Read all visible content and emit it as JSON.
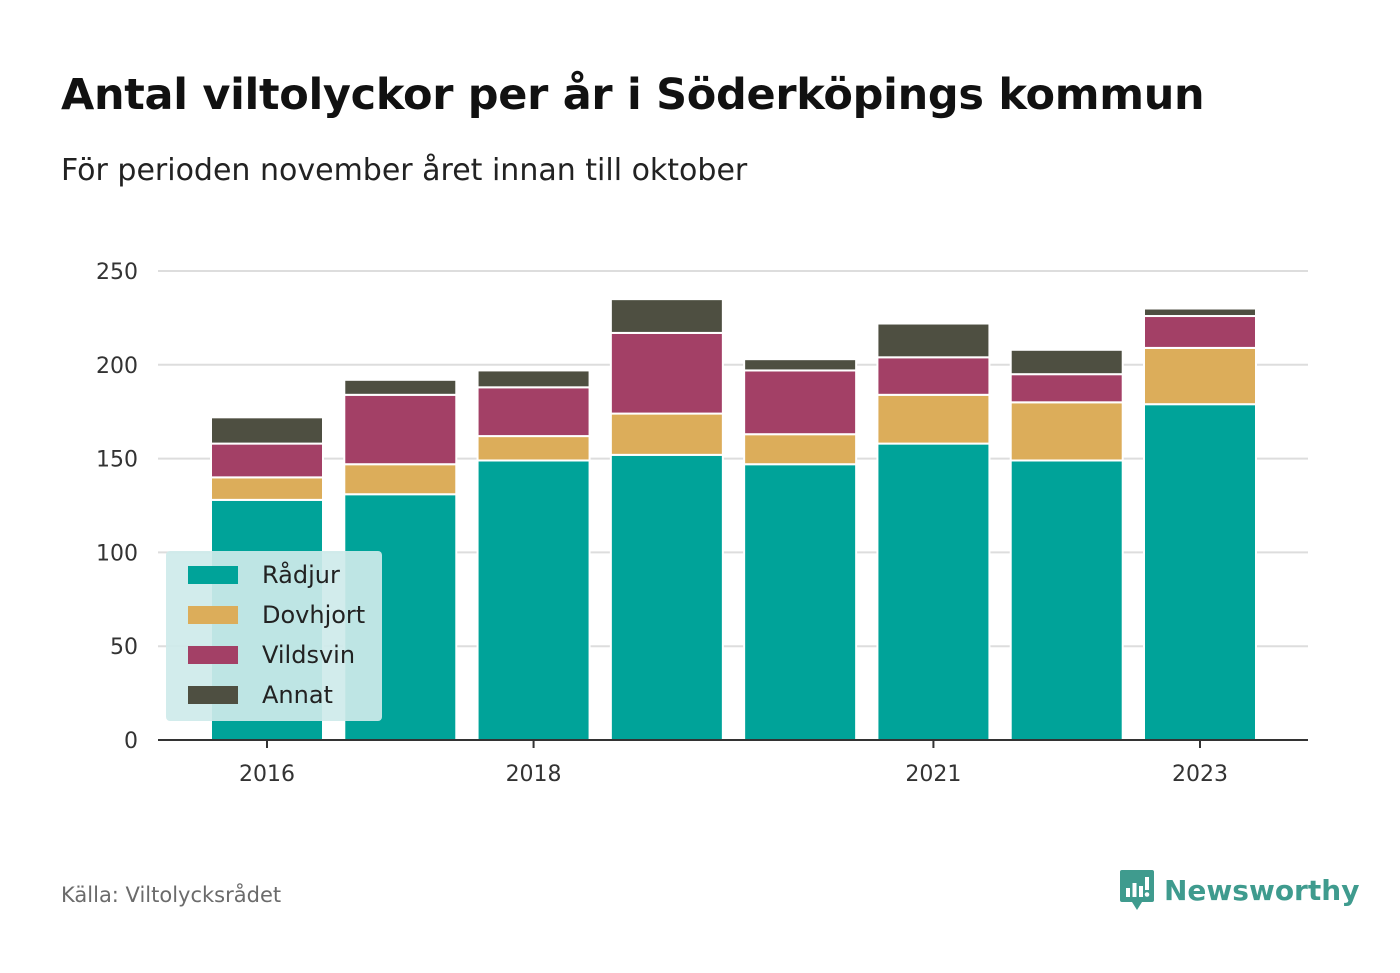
{
  "title": "Antal viltolyckor per år i Söderköpings kommun",
  "subtitle": "För perioden november året innan till oktober",
  "source": "Källa: Viltolycksrådet",
  "brand": {
    "name": "Newsworthy",
    "icon": "newsworthy-logo-icon",
    "color": "#3f9b8e"
  },
  "chart_data": {
    "type": "bar",
    "stacked": true,
    "categories": [
      "2016",
      "2017",
      "2018",
      "2019",
      "2020",
      "2021",
      "2022",
      "2023"
    ],
    "x_tick_labels": [
      "2016",
      "",
      "2018",
      "",
      "",
      "2021",
      "",
      "2023"
    ],
    "series": [
      {
        "name": "Rådjur",
        "color": "#00a399",
        "values": [
          128,
          131,
          149,
          152,
          147,
          158,
          149,
          179
        ]
      },
      {
        "name": "Dovhjort",
        "color": "#dcad5a",
        "values": [
          12,
          16,
          13,
          22,
          16,
          26,
          31,
          30
        ]
      },
      {
        "name": "Vildsvin",
        "color": "#a34066",
        "values": [
          18,
          37,
          26,
          43,
          34,
          20,
          15,
          17
        ]
      },
      {
        "name": "Annat",
        "color": "#4e4f41",
        "values": [
          14,
          8,
          9,
          18,
          6,
          18,
          13,
          4
        ]
      }
    ],
    "ylim": [
      0,
      250
    ],
    "yticks": [
      0,
      50,
      100,
      150,
      200,
      250
    ],
    "grid": true,
    "legend_position": "bottom-left"
  }
}
